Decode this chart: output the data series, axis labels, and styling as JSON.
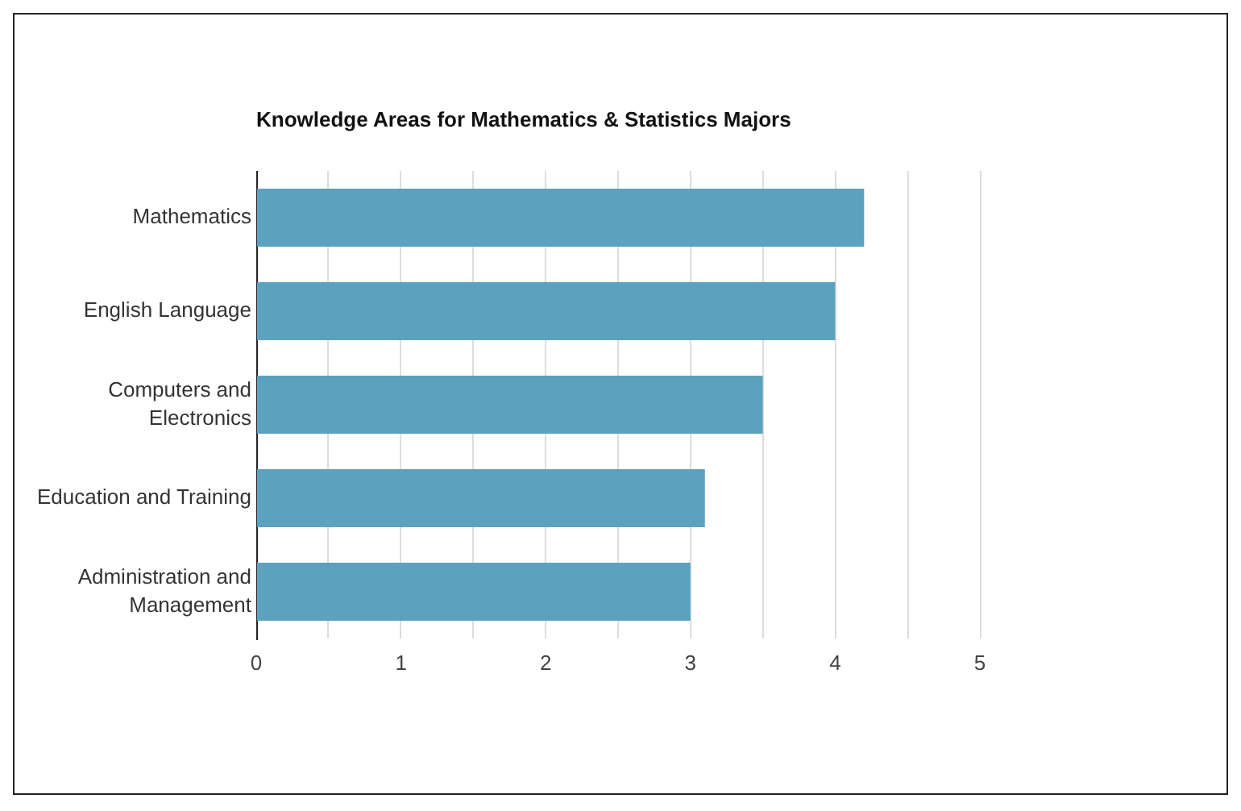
{
  "chart_data": {
    "type": "bar",
    "orientation": "horizontal",
    "title": "Knowledge Areas for Mathematics & Statistics Majors",
    "categories": [
      "Mathematics",
      "English Language",
      "Computers and Electronics",
      "Education and Training",
      "Administration and Management"
    ],
    "values": [
      4.2,
      4.0,
      3.5,
      3.1,
      3.0
    ],
    "color": "#5ca2bf",
    "xlim": [
      0,
      5
    ],
    "xticks": [
      0,
      {
        "value": 0.5,
        "label": null
      },
      1,
      {
        "value": 1.5,
        "label": null
      },
      2,
      {
        "value": 2.5,
        "label": null
      },
      3,
      {
        "value": 3.5,
        "label": null
      },
      4,
      {
        "value": 4.5,
        "label": null
      },
      5
    ],
    "grid": "x"
  }
}
